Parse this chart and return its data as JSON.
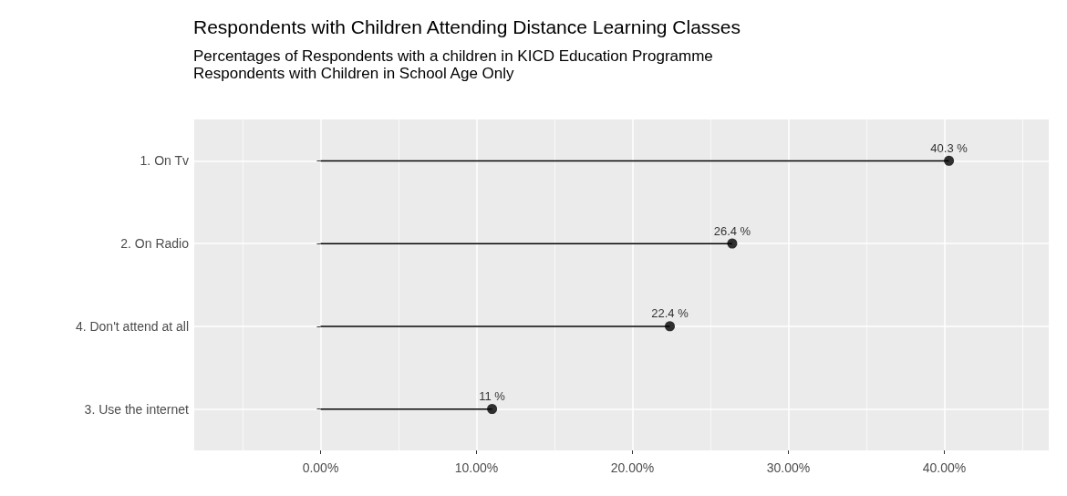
{
  "chart_data": {
    "type": "lollipop",
    "orientation": "horizontal",
    "title": "Respondents with Children Attending Distance Learning Classes",
    "subtitle": "Percentages of Respondents with a children in KICD Education Programme\nRespondents with Children in School Age Only",
    "categories": [
      "1. On Tv",
      "2. On Radio",
      "4. Don't attend at all",
      "3. Use the internet"
    ],
    "values": [
      40.3,
      26.4,
      22.4,
      11
    ],
    "value_labels": [
      "40.3 %",
      "26.4 %",
      "22.4 %",
      "11 %"
    ],
    "color": "#000000",
    "marker": "circle",
    "grid": true,
    "xlim": [
      -8.1,
      46.7
    ],
    "xticks": [
      {
        "value": -5,
        "label": null
      },
      {
        "value": 0,
        "label": "0.00%"
      },
      {
        "value": 5,
        "label": null
      },
      {
        "value": 10,
        "label": "10.00%"
      },
      {
        "value": 15,
        "label": null
      },
      {
        "value": 20,
        "label": "20.00%"
      },
      {
        "value": 25,
        "label": null
      },
      {
        "value": 30,
        "label": "30.00%"
      },
      {
        "value": 35,
        "label": null
      },
      {
        "value": 40,
        "label": "40.00%"
      },
      {
        "value": 45,
        "label": null
      }
    ]
  }
}
